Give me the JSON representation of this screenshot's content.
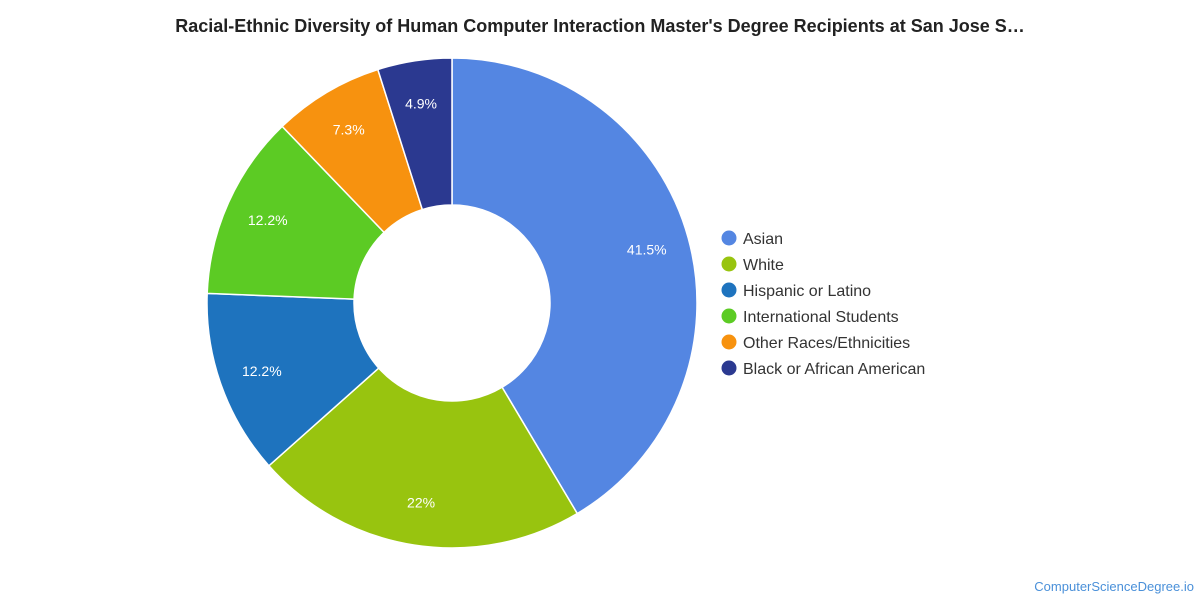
{
  "header": {
    "title": "Racial-Ethnic Diversity of Human Computer Interaction Master's Degree Recipients at San Jose S…"
  },
  "chart_data": {
    "type": "pie",
    "variant": "donut",
    "title": "Racial-Ethnic Diversity of Human Computer Interaction Master's Degree Recipients at San Jose S…",
    "legend_position": "right",
    "categories": [
      "Asian",
      "White",
      "Hispanic or Latino",
      "International Students",
      "Other Races/Ethnicities",
      "Black or African American"
    ],
    "values": [
      41.5,
      22,
      12.2,
      12.2,
      7.3,
      4.9
    ],
    "labels": [
      "41.5%",
      "22%",
      "12.2%",
      "12.2%",
      "7.3%",
      "4.9%"
    ],
    "colors": [
      "#5486e2",
      "#98c40f",
      "#1e73be",
      "#5ccb24",
      "#f7920f",
      "#2b3990"
    ]
  },
  "footer": {
    "credit": "ComputerScienceDegree.io"
  }
}
